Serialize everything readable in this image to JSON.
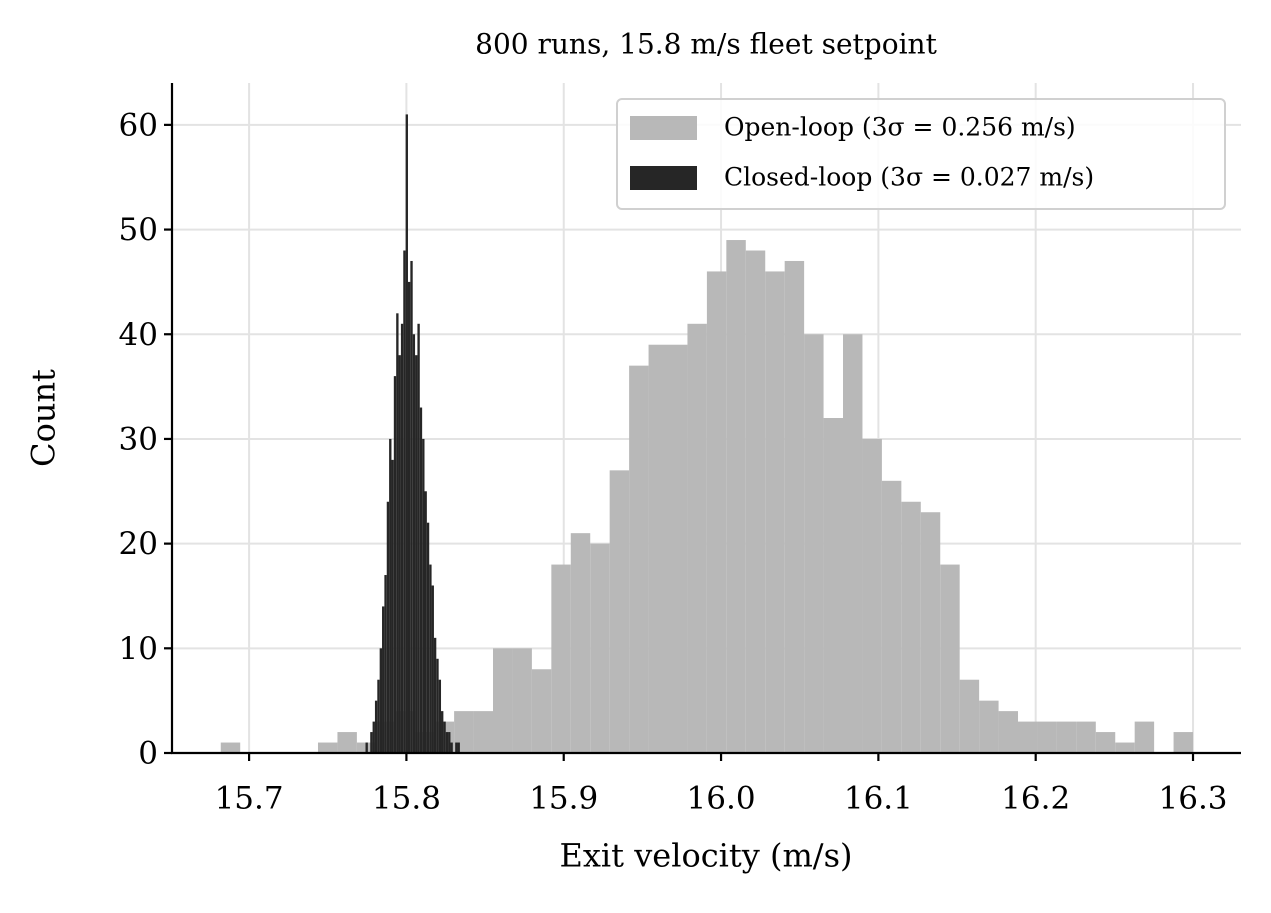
{
  "chart_data": {
    "type": "histogram",
    "title": "800 runs, 15.8 m/s fleet setpoint",
    "x_label": "Exit velocity (m/s)",
    "y_label": "Count",
    "xlim": [
      15.651,
      16.3305
    ],
    "ylim": [
      0,
      64
    ],
    "xticks": [
      15.7,
      15.8,
      15.9,
      {
        "value": 16,
        "label": "16.0"
      },
      16.1,
      16.2,
      16.3
    ],
    "yticks": [
      0,
      10,
      20,
      30,
      40,
      50,
      60
    ],
    "grid": true,
    "legend": "upper right",
    "series": [
      {
        "name": "Open-loop (3σ = 0.256 m/s)",
        "color": "#b8b8b8",
        "bins": [
          15.682,
          15.69436,
          15.70672,
          15.71908,
          15.73144,
          15.7438,
          15.75616,
          15.76852,
          15.78088,
          15.79324,
          15.8056,
          15.81796,
          15.83032,
          15.84268,
          15.85504,
          15.8674,
          15.87976,
          15.89212,
          15.90448,
          15.91684,
          15.9292,
          15.94156,
          15.95392,
          15.96628,
          15.97864,
          15.991,
          16.00336,
          16.01572,
          16.02808,
          16.04044,
          16.0528,
          16.06516,
          16.07752,
          16.08988,
          16.10224,
          16.1146,
          16.12696,
          16.13932,
          16.15168,
          16.16404,
          16.1764,
          16.18876,
          16.20112,
          16.21348,
          16.22584,
          16.2382,
          16.25056,
          16.26292,
          16.27528,
          16.28764,
          16.3
        ],
        "values": [
          1,
          0,
          0,
          0,
          0,
          1,
          2,
          1,
          3,
          4,
          2,
          3,
          4,
          4,
          10,
          10,
          8,
          18,
          21,
          20,
          27,
          37,
          39,
          39,
          41,
          46,
          49,
          48,
          46,
          47,
          40,
          32,
          40,
          30,
          26,
          24,
          23,
          18,
          7,
          5,
          4,
          3,
          3,
          3,
          3,
          2,
          1,
          3,
          0,
          2
        ]
      },
      {
        "name": "Closed-loop (3σ = 0.027 m/s)",
        "color": "#262626",
        "bins": [
          15.774,
          15.7755,
          15.777,
          15.7785,
          15.78,
          15.7815,
          15.783,
          15.7845,
          15.786,
          15.7875,
          15.789,
          15.7905,
          15.792,
          15.7935,
          15.795,
          15.7965,
          15.798,
          15.7995,
          15.801,
          15.8025,
          15.804,
          15.8055,
          15.807,
          15.8085,
          15.81,
          15.8115,
          15.813,
          15.8145,
          15.816,
          15.8175,
          15.819,
          15.8205,
          15.822,
          15.8235,
          15.825,
          15.8265,
          15.828,
          15.8295,
          15.831,
          15.8325,
          15.834
        ],
        "values": [
          1,
          0,
          2,
          3,
          5,
          7,
          10,
          14,
          17,
          24,
          30,
          28,
          36,
          42,
          38,
          41,
          48,
          61,
          45,
          47,
          40,
          38,
          41,
          33,
          30,
          25,
          22,
          18,
          16,
          11,
          9,
          7,
          4,
          3,
          2,
          2,
          1,
          0,
          1,
          1
        ]
      }
    ]
  }
}
